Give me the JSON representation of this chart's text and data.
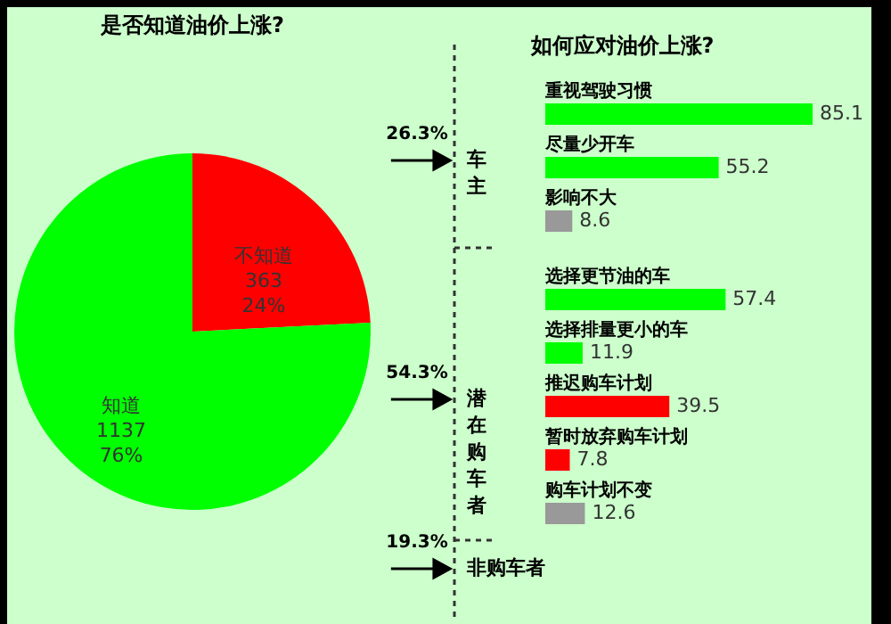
{
  "chart_data": [
    {
      "type": "pie",
      "title": "是否知道油价上涨?",
      "categories": [
        "不知道",
        "知道"
      ],
      "values": [
        363,
        1137
      ],
      "colors": [
        "#ff0000",
        "#00ff00"
      ],
      "value_labels": [
        "363\n24%",
        "1137\n76%"
      ]
    },
    {
      "type": "bar",
      "orientation": "horizontal",
      "title": "如何应对油价上涨?",
      "categories": [
        "重视驾驶习惯",
        "尽量少开车",
        "影响不大",
        "选择更节油的车",
        "选择排量更小的车",
        "推迟购车计划",
        "暂时放弃购车计划",
        "购车计划不变"
      ],
      "values": [
        85.1,
        55.2,
        8.6,
        57.4,
        11.9,
        39.5,
        7.8,
        12.6
      ],
      "colors": [
        "#00ff00",
        "#00ff00",
        "#999999",
        "#00ff00",
        "#00ff00",
        "#ff0000",
        "#ff0000",
        "#999999"
      ],
      "data_labels": true,
      "annotations": [
        "26.3%",
        "车主",
        "54.3%",
        "潜在购车者",
        "19.3%",
        "非购车者"
      ]
    }
  ]
}
